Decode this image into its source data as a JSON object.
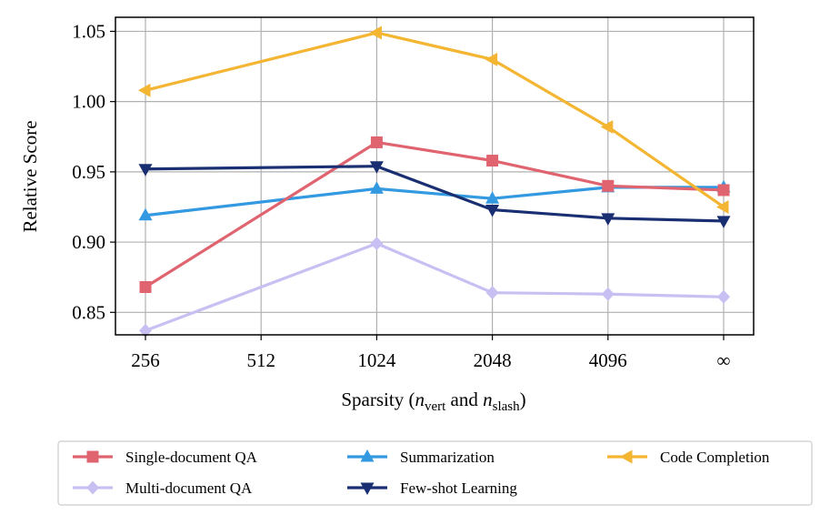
{
  "chart_data": {
    "type": "line",
    "title": "",
    "xlabel_main": "Sparsity (",
    "xlabel_var1": "n",
    "xlabel_sub1": "vert",
    "xlabel_and": " and ",
    "xlabel_var2": "n",
    "xlabel_sub2": "slash",
    "xlabel_close": ")",
    "ylabel": "Relative Score",
    "categories": [
      "256",
      "512",
      "1024",
      "2048",
      "4096",
      "∞"
    ],
    "yticks": [
      "0.85",
      "0.90",
      "0.95",
      "1.00",
      "1.05"
    ],
    "ytick_values": [
      0.85,
      0.9,
      0.95,
      1.0,
      1.05
    ],
    "ylim": [
      0.834,
      1.06
    ],
    "grid": true,
    "legend_position": "bottom",
    "series": [
      {
        "name": "Single-document QA",
        "color": "#e06470",
        "marker": "square",
        "x": [
          0,
          2,
          3,
          4,
          5
        ],
        "values": [
          0.868,
          0.971,
          0.958,
          0.94,
          0.937
        ]
      },
      {
        "name": "Summarization",
        "color": "#3399e0",
        "marker": "triangle-up",
        "x": [
          0,
          2,
          3,
          4,
          5
        ],
        "values": [
          0.919,
          0.938,
          0.931,
          0.939,
          0.939
        ]
      },
      {
        "name": "Code Completion",
        "color": "#f3b532",
        "marker": "triangle-left",
        "x": [
          0,
          2,
          3,
          4,
          5
        ],
        "values": [
          1.008,
          1.049,
          1.03,
          0.982,
          0.925
        ]
      },
      {
        "name": "Multi-document QA",
        "color": "#c8c0f2",
        "marker": "diamond",
        "x": [
          0,
          2,
          3,
          4,
          5
        ],
        "values": [
          0.837,
          0.899,
          0.864,
          0.863,
          0.861
        ]
      },
      {
        "name": "Few-shot Learning",
        "color": "#1a2f72",
        "marker": "triangle-down",
        "x": [
          0,
          2,
          3,
          4,
          5
        ],
        "values": [
          0.952,
          0.954,
          0.923,
          0.917,
          0.915
        ]
      }
    ]
  }
}
